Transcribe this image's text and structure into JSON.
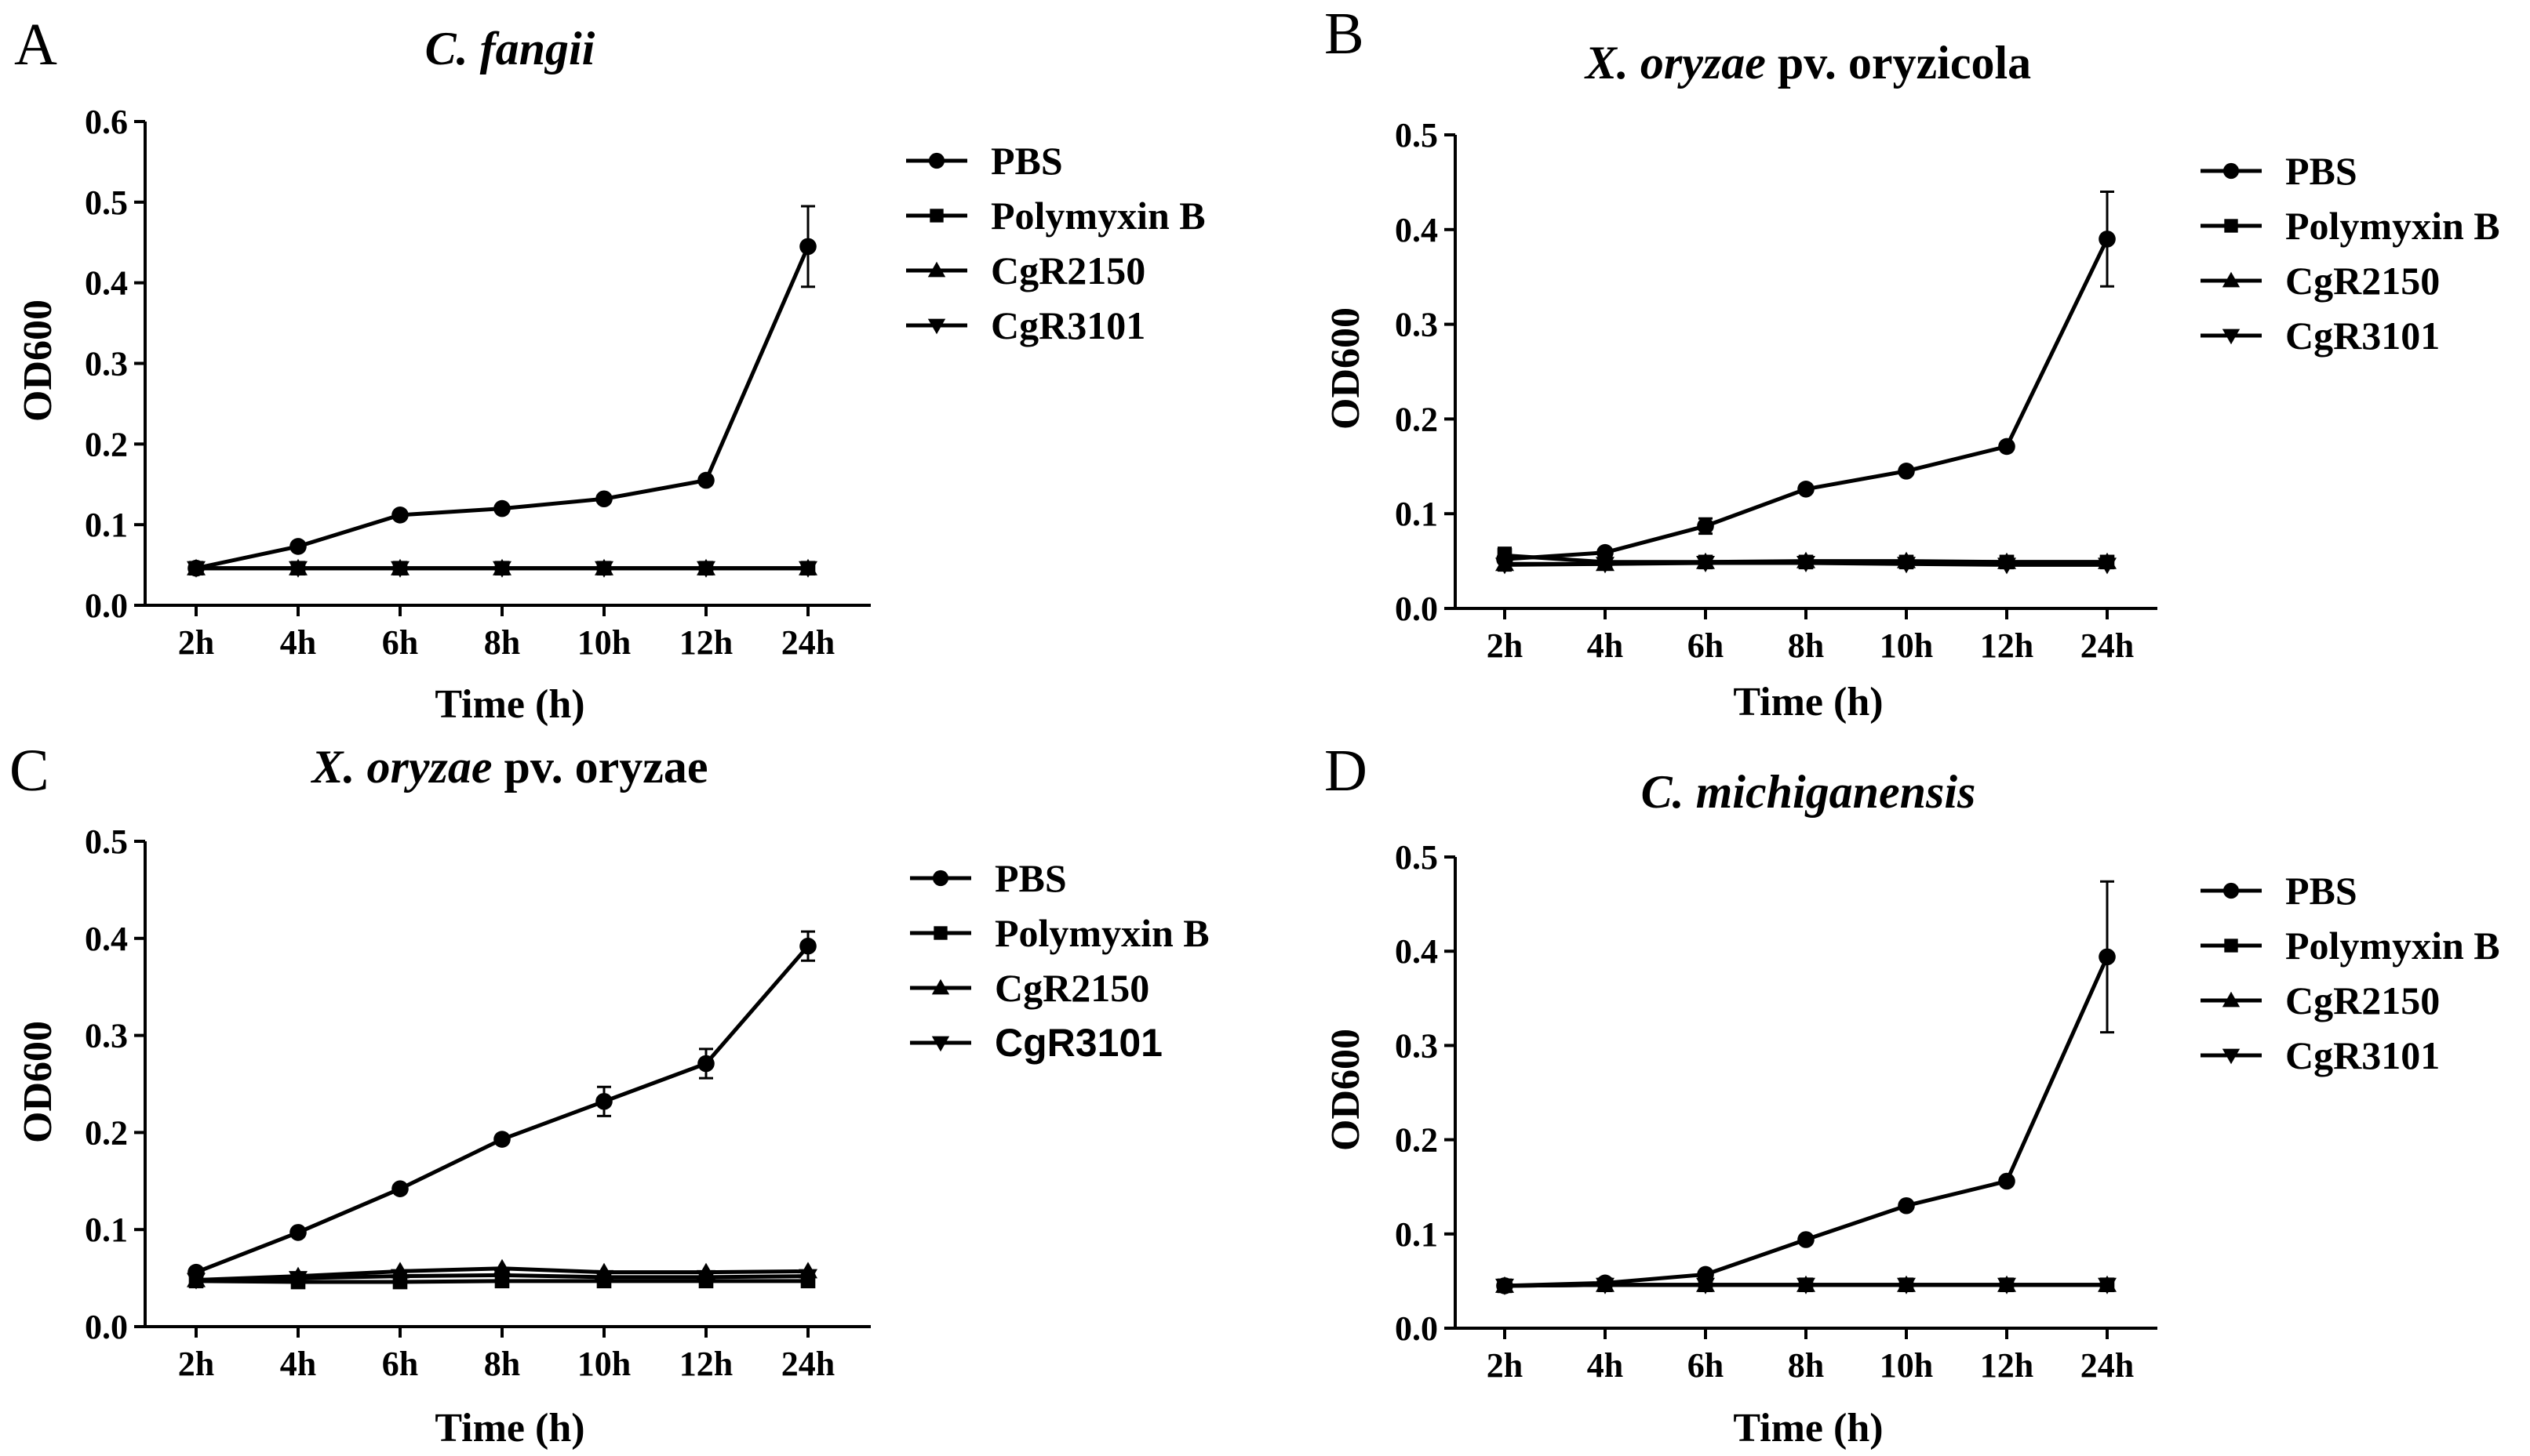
{
  "chart_data": [
    {
      "panel": "A",
      "type": "line",
      "title": [
        {
          "text": "C. fangii",
          "italic": true
        }
      ],
      "xlabel": "Time (h)",
      "ylabel": "OD600",
      "ylim": [
        0,
        0.6
      ],
      "yticks": [
        "0.0",
        "0.1",
        "0.2",
        "0.3",
        "0.4",
        "0.5",
        "0.6"
      ],
      "categories": [
        "2h",
        "4h",
        "6h",
        "8h",
        "10h",
        "12h",
        "24h"
      ],
      "series": [
        {
          "name": "PBS",
          "marker": "circle",
          "values": [
            0.046,
            0.073,
            0.112,
            0.12,
            0.132,
            0.155,
            0.445
          ],
          "errors": [
            0,
            0,
            0,
            0,
            0,
            0,
            0.05
          ]
        },
        {
          "name": "Polymyxin B",
          "marker": "square",
          "values": [
            0.046,
            0.046,
            0.046,
            0.046,
            0.046,
            0.046,
            0.046
          ],
          "errors": [
            0,
            0,
            0,
            0,
            0,
            0,
            0
          ]
        },
        {
          "name": "CgR2150",
          "marker": "triangle-up",
          "values": [
            0.046,
            0.046,
            0.046,
            0.046,
            0.046,
            0.046,
            0.046
          ],
          "errors": [
            0,
            0,
            0,
            0,
            0,
            0,
            0
          ]
        },
        {
          "name": "CgR3101",
          "marker": "triangle-down",
          "values": [
            0.046,
            0.046,
            0.046,
            0.046,
            0.046,
            0.046,
            0.046
          ],
          "errors": [
            0,
            0,
            0,
            0,
            0,
            0,
            0
          ]
        }
      ]
    },
    {
      "panel": "B",
      "type": "line",
      "title": [
        {
          "text": "X. oryzae",
          "italic": true
        },
        {
          "text": " pv. oryzicola",
          "italic": false
        }
      ],
      "xlabel": "Time (h)",
      "ylabel": "OD600",
      "ylim": [
        0,
        0.5
      ],
      "yticks": [
        "0.0",
        "0.1",
        "0.2",
        "0.3",
        "0.4",
        "0.5"
      ],
      "categories": [
        "2h",
        "4h",
        "6h",
        "8h",
        "10h",
        "12h",
        "24h"
      ],
      "series": [
        {
          "name": "PBS",
          "marker": "circle",
          "values": [
            0.052,
            0.059,
            0.087,
            0.126,
            0.145,
            0.171,
            0.39
          ],
          "errors": [
            0.012,
            0,
            0.008,
            0,
            0,
            0,
            0.05
          ]
        },
        {
          "name": "Polymyxin B",
          "marker": "square",
          "values": [
            0.056,
            0.049,
            0.049,
            0.049,
            0.049,
            0.049,
            0.049
          ],
          "errors": [
            0.008,
            0,
            0,
            0,
            0,
            0,
            0
          ]
        },
        {
          "name": "CgR2150",
          "marker": "triangle-up",
          "values": [
            0.047,
            0.047,
            0.049,
            0.05,
            0.05,
            0.049,
            0.049
          ],
          "errors": [
            0,
            0,
            0,
            0,
            0,
            0,
            0
          ]
        },
        {
          "name": "CgR3101",
          "marker": "triangle-down",
          "values": [
            0.046,
            0.047,
            0.048,
            0.048,
            0.047,
            0.046,
            0.046
          ],
          "errors": [
            0,
            0,
            0,
            0,
            0,
            0,
            0
          ]
        }
      ]
    },
    {
      "panel": "C",
      "type": "line",
      "title": [
        {
          "text": "X. oryzae",
          "italic": true
        },
        {
          "text": " pv. oryzae",
          "italic": false
        }
      ],
      "xlabel": "Time (h)",
      "ylabel": "OD600",
      "ylim": [
        0,
        0.5
      ],
      "yticks": [
        "0.0",
        "0.1",
        "0.2",
        "0.3",
        "0.4",
        "0.5"
      ],
      "categories": [
        "2h",
        "4h",
        "6h",
        "8h",
        "10h",
        "12h",
        "24h"
      ],
      "series": [
        {
          "name": "PBS",
          "marker": "circle",
          "values": [
            0.056,
            0.097,
            0.142,
            0.193,
            0.232,
            0.271,
            0.392
          ],
          "errors": [
            0,
            0,
            0,
            0,
            0.015,
            0.015,
            0.015
          ]
        },
        {
          "name": "Polymyxin B",
          "marker": "square",
          "values": [
            0.047,
            0.046,
            0.046,
            0.047,
            0.047,
            0.047,
            0.047
          ],
          "errors": [
            0,
            0,
            0,
            0,
            0,
            0,
            0
          ]
        },
        {
          "name": "CgR2150",
          "marker": "triangle-up",
          "values": [
            0.048,
            0.052,
            0.057,
            0.06,
            0.056,
            0.056,
            0.057
          ],
          "errors": [
            0,
            0,
            0,
            0,
            0,
            0,
            0
          ]
        },
        {
          "name": "CgR3101",
          "marker": "triangle-down",
          "values": [
            0.048,
            0.05,
            0.052,
            0.053,
            0.051,
            0.051,
            0.052
          ],
          "errors": [
            0,
            0,
            0,
            0,
            0,
            0,
            0
          ]
        }
      ]
    },
    {
      "panel": "D",
      "type": "line",
      "title": [
        {
          "text": "C. michiganensis",
          "italic": true
        }
      ],
      "xlabel": "Time (h)",
      "ylabel": "OD600",
      "ylim": [
        0,
        0.5
      ],
      "yticks": [
        "0.0",
        "0.1",
        "0.2",
        "0.3",
        "0.4",
        "0.5"
      ],
      "categories": [
        "2h",
        "4h",
        "6h",
        "8h",
        "10h",
        "12h",
        "24h"
      ],
      "series": [
        {
          "name": "PBS",
          "marker": "circle",
          "values": [
            0.045,
            0.048,
            0.057,
            0.094,
            0.13,
            0.156,
            0.394
          ],
          "errors": [
            0,
            0,
            0,
            0,
            0,
            0,
            0.08
          ]
        },
        {
          "name": "Polymyxin B",
          "marker": "square",
          "values": [
            0.045,
            0.046,
            0.046,
            0.046,
            0.046,
            0.046,
            0.046
          ],
          "errors": [
            0,
            0,
            0,
            0,
            0,
            0,
            0
          ]
        },
        {
          "name": "CgR2150",
          "marker": "triangle-up",
          "values": [
            0.045,
            0.046,
            0.046,
            0.046,
            0.046,
            0.046,
            0.046
          ],
          "errors": [
            0,
            0,
            0,
            0,
            0,
            0,
            0
          ]
        },
        {
          "name": "CgR3101",
          "marker": "triangle-down",
          "values": [
            0.045,
            0.046,
            0.046,
            0.046,
            0.046,
            0.046,
            0.046
          ],
          "errors": [
            0,
            0,
            0,
            0,
            0,
            0,
            0
          ]
        }
      ]
    }
  ]
}
